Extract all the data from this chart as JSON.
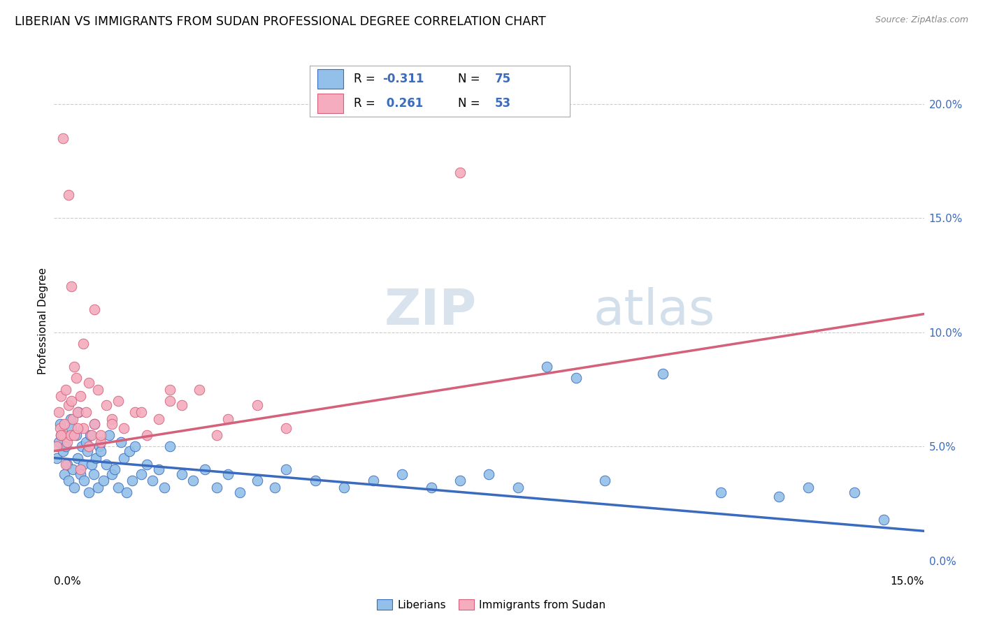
{
  "title": "LIBERIAN VS IMMIGRANTS FROM SUDAN PROFESSIONAL DEGREE CORRELATION CHART",
  "source": "Source: ZipAtlas.com",
  "ylabel": "Professional Degree",
  "legend_name1": "Liberians",
  "legend_name2": "Immigrants from Sudan",
  "color_blue": "#92C0E8",
  "color_pink": "#F4ACBE",
  "line_color_blue": "#3A6BBF",
  "line_color_pink": "#D4607A",
  "xmin": 0.0,
  "xmax": 15.0,
  "ymin": 0.0,
  "ymax": 21.0,
  "bg_color": "#FFFFFF",
  "grid_color": "#CCCCCC",
  "R1": "-0.311",
  "N1": "75",
  "R2": "0.261",
  "N2": "53",
  "blue_line_x": [
    0.0,
    15.0
  ],
  "blue_line_y": [
    4.5,
    1.3
  ],
  "pink_line_x": [
    0.0,
    15.0
  ],
  "pink_line_y": [
    4.8,
    10.8
  ],
  "blue_scatter_x": [
    0.05,
    0.08,
    0.1,
    0.12,
    0.15,
    0.18,
    0.2,
    0.22,
    0.25,
    0.28,
    0.3,
    0.32,
    0.35,
    0.38,
    0.4,
    0.42,
    0.45,
    0.48,
    0.5,
    0.52,
    0.55,
    0.58,
    0.6,
    0.62,
    0.65,
    0.68,
    0.7,
    0.72,
    0.75,
    0.78,
    0.8,
    0.85,
    0.9,
    0.95,
    1.0,
    1.05,
    1.1,
    1.15,
    1.2,
    1.25,
    1.3,
    1.35,
    1.4,
    1.5,
    1.6,
    1.7,
    1.8,
    1.9,
    2.0,
    2.2,
    2.4,
    2.6,
    2.8,
    3.0,
    3.2,
    3.5,
    3.8,
    4.0,
    4.5,
    5.0,
    5.5,
    6.0,
    6.5,
    7.0,
    7.5,
    8.0,
    8.5,
    9.5,
    10.5,
    11.5,
    12.5,
    13.0,
    13.8,
    14.3,
    9.0
  ],
  "blue_scatter_y": [
    4.5,
    5.2,
    6.0,
    5.5,
    4.8,
    3.8,
    5.0,
    4.2,
    3.5,
    6.2,
    5.8,
    4.0,
    3.2,
    5.5,
    4.5,
    6.5,
    3.8,
    5.0,
    4.2,
    3.5,
    5.2,
    4.8,
    3.0,
    5.5,
    4.2,
    3.8,
    6.0,
    4.5,
    3.2,
    5.0,
    4.8,
    3.5,
    4.2,
    5.5,
    3.8,
    4.0,
    3.2,
    5.2,
    4.5,
    3.0,
    4.8,
    3.5,
    5.0,
    3.8,
    4.2,
    3.5,
    4.0,
    3.2,
    5.0,
    3.8,
    3.5,
    4.0,
    3.2,
    3.8,
    3.0,
    3.5,
    3.2,
    4.0,
    3.5,
    3.2,
    3.5,
    3.8,
    3.2,
    3.5,
    3.8,
    3.2,
    8.5,
    3.5,
    8.2,
    3.0,
    2.8,
    3.2,
    3.0,
    1.8,
    8.0
  ],
  "pink_scatter_x": [
    0.05,
    0.08,
    0.1,
    0.12,
    0.15,
    0.18,
    0.2,
    0.22,
    0.25,
    0.28,
    0.3,
    0.32,
    0.35,
    0.38,
    0.4,
    0.45,
    0.5,
    0.55,
    0.6,
    0.65,
    0.7,
    0.75,
    0.8,
    0.9,
    1.0,
    1.1,
    1.2,
    1.4,
    1.6,
    1.8,
    2.0,
    2.2,
    2.5,
    2.8,
    3.0,
    3.5,
    4.0,
    0.3,
    0.5,
    0.7,
    1.5,
    2.0,
    0.15,
    0.25,
    0.45,
    0.6,
    0.8,
    1.0,
    0.35,
    7.0,
    0.12,
    0.2,
    0.4
  ],
  "pink_scatter_y": [
    5.0,
    6.5,
    5.8,
    7.2,
    5.5,
    6.0,
    7.5,
    5.2,
    6.8,
    5.5,
    7.0,
    6.2,
    5.5,
    8.0,
    6.5,
    7.2,
    5.8,
    6.5,
    7.8,
    5.5,
    6.0,
    7.5,
    5.2,
    6.8,
    6.2,
    7.0,
    5.8,
    6.5,
    5.5,
    6.2,
    7.0,
    6.8,
    7.5,
    5.5,
    6.2,
    6.8,
    5.8,
    12.0,
    9.5,
    11.0,
    6.5,
    7.5,
    18.5,
    16.0,
    4.0,
    5.0,
    5.5,
    6.0,
    8.5,
    17.0,
    5.5,
    4.2,
    5.8
  ]
}
